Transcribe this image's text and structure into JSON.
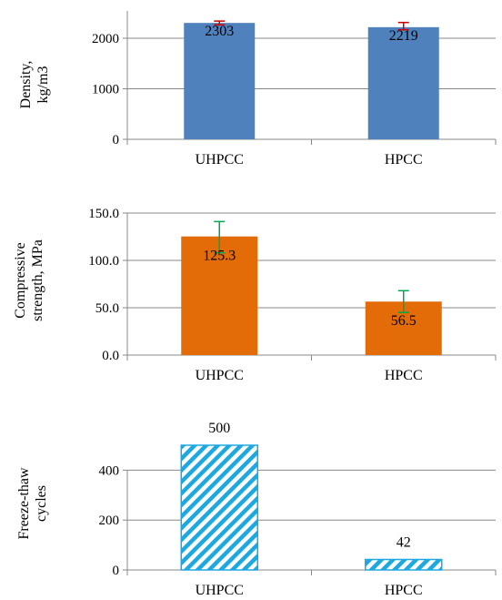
{
  "colors": {
    "density_bar": "#4f81bd",
    "strength_bar": "#e36c09",
    "freeze_bar": "#1ea8e0",
    "density_error": "#cc0000",
    "strength_error": "#00a651",
    "axis": "#888888"
  },
  "chart_data": [
    {
      "type": "bar",
      "categories": [
        "UHPCC",
        "HPCC"
      ],
      "values": [
        2303,
        2219
      ],
      "labels": [
        "2303",
        "2219"
      ],
      "error_bars": [
        [
          2265,
          2340
        ],
        [
          2168,
          2312
        ]
      ],
      "ylabel": "Density,\nkg/m3",
      "ylim": [
        0,
        2500
      ],
      "yticks": [
        "0",
        "1000",
        "2000"
      ],
      "ytick_values": [
        0,
        1000,
        2000
      ],
      "grid": true,
      "fill": "solid"
    },
    {
      "type": "bar",
      "categories": [
        "UHPCC",
        "HPCC"
      ],
      "values": [
        125.3,
        56.5
      ],
      "labels": [
        "125.3",
        "56.5"
      ],
      "error_bars": [
        [
          108,
          141
        ],
        [
          45,
          68
        ]
      ],
      "ylabel": "Compressive\nstrength, MPa",
      "ylim": [
        0,
        150
      ],
      "yticks": [
        "0.0",
        "50.0",
        "100.0",
        "150.0"
      ],
      "ytick_values": [
        0,
        50,
        100,
        150
      ],
      "grid": true,
      "fill": "solid"
    },
    {
      "type": "bar",
      "categories": [
        "UHPCC",
        "HPCC"
      ],
      "values": [
        500,
        42
      ],
      "labels": [
        "500",
        "42"
      ],
      "ylabel": "Freeze-thaw\ncycles",
      "ylim": [
        0,
        500
      ],
      "yticks": [
        "0",
        "200",
        "400"
      ],
      "ytick_values": [
        0,
        200,
        400
      ],
      "grid": true,
      "fill": "hatched"
    }
  ]
}
